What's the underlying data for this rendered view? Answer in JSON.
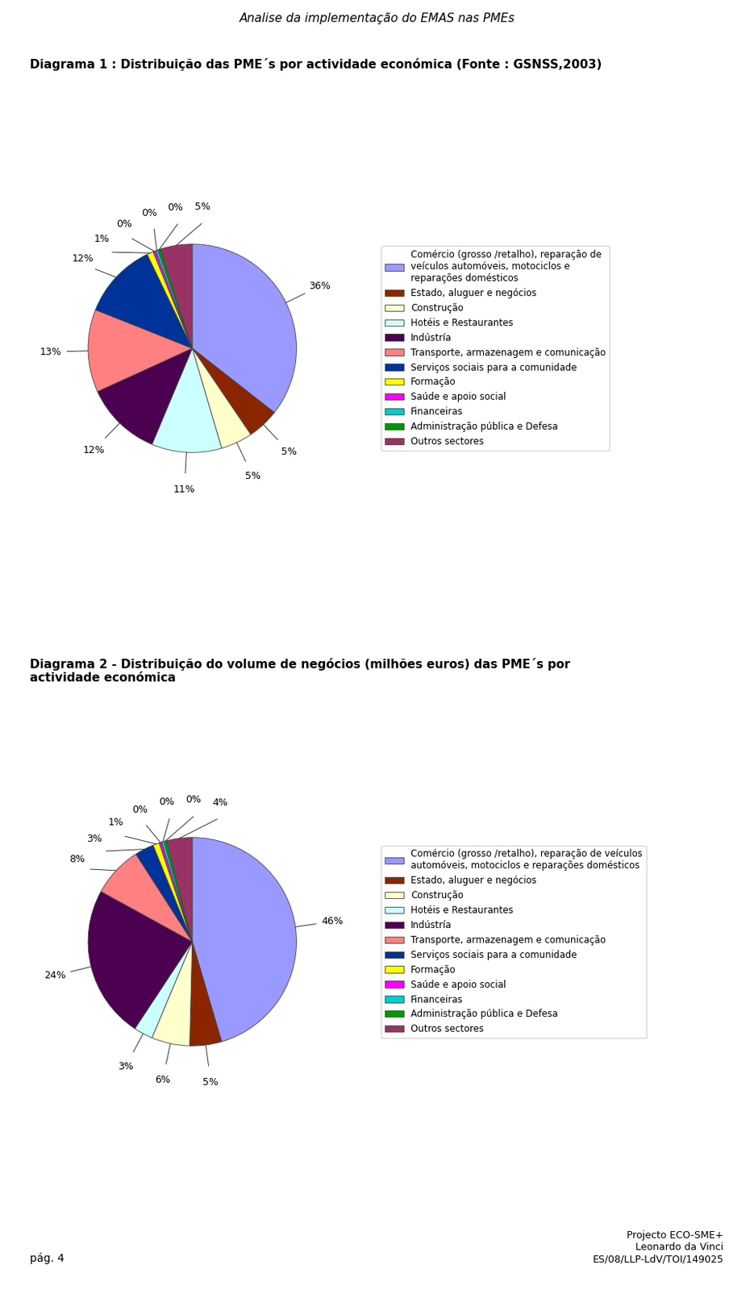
{
  "title": "Analise da implementação do EMAS nas PMEs",
  "annotations": [
    "pág. 4",
    "Projecto ECO-SME+\nLeonardo da Vinci\nES/08/LLP-LdV/TOI/149025"
  ],
  "chart_data": [
    {
      "type": "pie",
      "title": "Diagrama 1 : Distribuição das PME´s por actividade económica (Fonte : GSNSS,2003)",
      "categories": [
        "Comércio (grosso /retalho), reparação de\nveículos automóveis, motociclos e\nreparações domésticos",
        "Estado, aluguer e negócios",
        "Construção",
        "Hotéis e Restaurantes",
        "Indústría",
        "Transporte, armazenagem e comunicação",
        "Serviços sociais para a comunidade",
        "Formação",
        "Saúde e apoio social",
        "Financeiras",
        "Administração pública e Defesa",
        "Outros sectores"
      ],
      "values": [
        36,
        5,
        5,
        11,
        12,
        13,
        12,
        1,
        0.4,
        0.4,
        0.4,
        5
      ],
      "value_labels": [
        "36%",
        "5%",
        "5%",
        "11%",
        "12%",
        "13%",
        "12%",
        "1%",
        "0%",
        "0%",
        "0%",
        "5%"
      ],
      "colors": [
        "#9999FF",
        "#8B2500",
        "#FFFFCC",
        "#CCFFFF",
        "#4B0050",
        "#FF8080",
        "#003399",
        "#FFFF00",
        "#FF00FF",
        "#00CCCC",
        "#009900",
        "#993366"
      ],
      "data_labels": true,
      "legend": "center left"
    },
    {
      "type": "pie",
      "title": "Diagrama 2 - Distribuição do volume de negócios (milhões euros) das PME´s por\nactividade económica",
      "categories": [
        "Comércio (grosso /retalho), reparação de veículos\nautomóveis, motociclos e reparações domésticos",
        "Estado, aluguer e negócios",
        "Construção",
        "Hotéis e Restaurantes",
        "Indústría",
        "Transporte, armazenagem e comunicação",
        "Serviços sociais para a comunidade",
        "Formação",
        "Saúde e apoio social",
        "Financeiras",
        "Administração pública e Defesa",
        "Outros sectores"
      ],
      "values": [
        46,
        5,
        6,
        3,
        24,
        8,
        3,
        1,
        0.4,
        0.4,
        0.4,
        4
      ],
      "value_labels": [
        "46%",
        "5%",
        "6%",
        "3%",
        "24%",
        "8%",
        "3%",
        "1%",
        "0%",
        "0%",
        "0%",
        "4%"
      ],
      "colors": [
        "#9999FF",
        "#8B2500",
        "#FFFFCC",
        "#CCFFFF",
        "#4B0050",
        "#FF8080",
        "#003399",
        "#FFFF00",
        "#FF00FF",
        "#00CCCC",
        "#009900",
        "#993366"
      ],
      "data_labels": true,
      "legend": "center left"
    }
  ]
}
